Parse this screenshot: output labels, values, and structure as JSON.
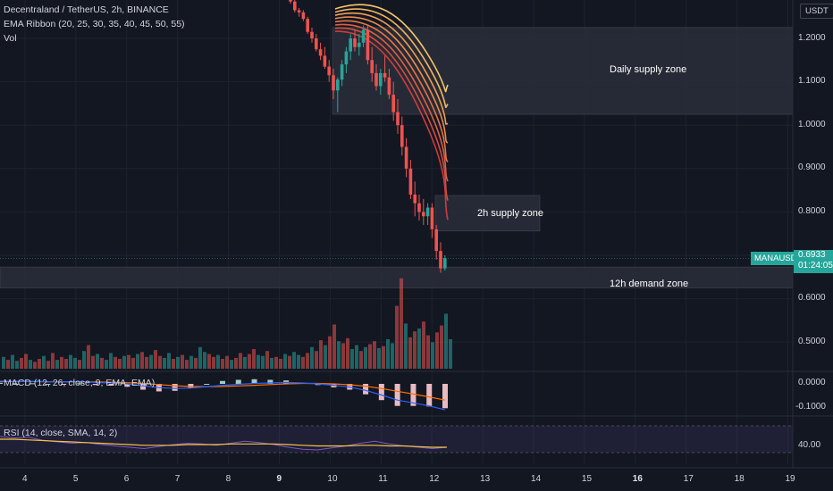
{
  "legend": {
    "symbol_line": "Decentraland / TetherUS, 2h, BINANCE",
    "ema_line": "EMA Ribbon (20, 25, 30, 35, 40, 45, 50, 55)",
    "vol_line": "Vol",
    "macd_line": "MACD (12, 26, close, 9, EMA, EMA)",
    "rsi_line": "RSI (14, close, SMA, 14, 2)"
  },
  "currency": "USDT",
  "symbol_badge": "MANAUSDT",
  "last_price": "0.6933",
  "countdown": "01:24:05",
  "zones": {
    "daily": "Daily supply zone",
    "h2": "2h supply zone",
    "h12": "12h demand zone"
  },
  "price_axis": [
    "1.2000",
    "1.1000",
    "1.0000",
    "0.9000",
    "0.8000",
    "0.6000",
    "0.5000"
  ],
  "macd_axis": [
    "0.0000",
    "-0.1000"
  ],
  "rsi_axis": [
    "40.00"
  ],
  "date_axis": [
    "4",
    "5",
    "6",
    "7",
    "8",
    "9",
    "10",
    "11",
    "12",
    "13",
    "14",
    "15",
    "16",
    "17",
    "18",
    "19"
  ],
  "date_axis_bold": [
    "9",
    "16"
  ],
  "colors": {
    "up": "#26a69a",
    "down": "#ef5350",
    "zone_fill": "#2a2e39",
    "macd": "#2962ff",
    "signal": "#ff6d00",
    "rsi": "#7e57c2",
    "rsi_ma": "#f5c542",
    "ribbon": [
      "#f7c56a",
      "#f3b35f",
      "#ee9f55",
      "#e98a4d",
      "#e37446",
      "#dd6041",
      "#d54e3e",
      "#cc3d3b"
    ]
  },
  "chart_data": {
    "type": "candlestick",
    "timeframe": "2h",
    "x_range_days": [
      3.5,
      19.3
    ],
    "price_axis_range": [
      0.41,
      1.29
    ],
    "candles_start_day": 8.25,
    "candle_step_days": 0.0833,
    "ohlc": [
      [
        1.29,
        1.3,
        1.28,
        1.285
      ],
      [
        1.285,
        1.29,
        1.26,
        1.265
      ],
      [
        1.265,
        1.27,
        1.25,
        1.26
      ],
      [
        1.26,
        1.265,
        1.24,
        1.245
      ],
      [
        1.245,
        1.25,
        1.21,
        1.215
      ],
      [
        1.215,
        1.225,
        1.19,
        1.2
      ],
      [
        1.2,
        1.21,
        1.17,
        1.175
      ],
      [
        1.175,
        1.19,
        1.15,
        1.16
      ],
      [
        1.16,
        1.18,
        1.13,
        1.135
      ],
      [
        1.135,
        1.15,
        1.1,
        1.115
      ],
      [
        1.115,
        1.13,
        1.06,
        1.08
      ],
      [
        1.08,
        1.11,
        1.03,
        1.105
      ],
      [
        1.105,
        1.15,
        1.09,
        1.14
      ],
      [
        1.14,
        1.18,
        1.12,
        1.17
      ],
      [
        1.17,
        1.21,
        1.15,
        1.2
      ],
      [
        1.2,
        1.22,
        1.17,
        1.18
      ],
      [
        1.18,
        1.21,
        1.16,
        1.19
      ],
      [
        1.19,
        1.23,
        1.18,
        1.22
      ],
      [
        1.22,
        1.23,
        1.14,
        1.15
      ],
      [
        1.15,
        1.18,
        1.1,
        1.12
      ],
      [
        1.12,
        1.14,
        1.08,
        1.09
      ],
      [
        1.09,
        1.13,
        1.07,
        1.12
      ],
      [
        1.12,
        1.16,
        1.1,
        1.11
      ],
      [
        1.11,
        1.13,
        1.06,
        1.07
      ],
      [
        1.07,
        1.1,
        1.01,
        1.03
      ],
      [
        1.03,
        1.06,
        0.98,
        1.0
      ],
      [
        1.0,
        1.02,
        0.93,
        0.95
      ],
      [
        0.95,
        0.97,
        0.88,
        0.9
      ],
      [
        0.9,
        0.92,
        0.83,
        0.84
      ],
      [
        0.84,
        0.87,
        0.79,
        0.82
      ],
      [
        0.82,
        0.84,
        0.78,
        0.8
      ],
      [
        0.8,
        0.83,
        0.77,
        0.79
      ],
      [
        0.79,
        0.82,
        0.77,
        0.81
      ],
      [
        0.81,
        0.82,
        0.74,
        0.76
      ],
      [
        0.76,
        0.77,
        0.69,
        0.71
      ],
      [
        0.71,
        0.73,
        0.66,
        0.67
      ],
      [
        0.67,
        0.7,
        0.665,
        0.6933
      ]
    ],
    "volume": [
      12,
      9,
      14,
      8,
      11,
      15,
      9,
      7,
      10,
      13,
      8,
      16,
      9,
      12,
      10,
      14,
      11,
      9,
      18,
      24,
      13,
      15,
      11,
      9,
      16,
      12,
      10,
      13,
      14,
      11,
      15,
      17,
      12,
      14,
      19,
      13,
      11,
      16,
      10,
      12,
      14,
      9,
      13,
      11,
      22,
      17,
      15,
      12,
      14,
      10,
      13,
      9,
      11,
      16,
      12,
      15,
      20,
      14,
      13,
      18,
      11,
      12,
      10,
      15,
      13,
      17,
      14,
      12,
      16,
      22,
      18,
      29,
      24,
      33,
      45,
      28,
      26,
      31,
      20,
      24,
      18,
      22,
      25,
      28,
      21,
      23,
      30,
      26,
      64,
      92,
      46,
      32,
      38,
      41,
      48,
      34,
      27,
      37,
      44,
      56,
      30
    ],
    "volume_axis_max": 100,
    "macd": [
      0.012,
      0.01,
      0.011,
      0.009,
      0.008,
      0.01,
      0.006,
      0.004,
      0.0,
      -0.008,
      -0.016,
      -0.02,
      -0.018,
      -0.012,
      -0.006,
      -0.002,
      0.002,
      0.004,
      0.006,
      0.004,
      0.0,
      -0.006,
      -0.014,
      -0.028,
      -0.048,
      -0.07,
      -0.082,
      -0.095,
      -0.112
    ],
    "signal": [
      0.01,
      0.01,
      0.01,
      0.009,
      0.009,
      0.009,
      0.008,
      0.007,
      0.005,
      0.002,
      -0.003,
      -0.008,
      -0.011,
      -0.012,
      -0.011,
      -0.009,
      -0.006,
      -0.003,
      0.0,
      0.002,
      0.002,
      0.0,
      -0.004,
      -0.01,
      -0.02,
      -0.032,
      -0.044,
      -0.056,
      -0.07
    ],
    "macd_axis_range": [
      -0.13,
      0.03
    ],
    "rsi": [
      54,
      52,
      53,
      48,
      46,
      44,
      45,
      42,
      40,
      38,
      36,
      39,
      42,
      44,
      43,
      41,
      44,
      47,
      45,
      42,
      38,
      35,
      34,
      37,
      40,
      44,
      47,
      43,
      40,
      38,
      36,
      38
    ],
    "rsi_ma": [
      50,
      50,
      49,
      48,
      47,
      46,
      45,
      44,
      43,
      42,
      41,
      41,
      41,
      42,
      42,
      42,
      43,
      43,
      43,
      43,
      42,
      41,
      40,
      40,
      40,
      41,
      41,
      40,
      40,
      39,
      38,
      38
    ],
    "rsi_axis_range": [
      10,
      70
    ]
  }
}
